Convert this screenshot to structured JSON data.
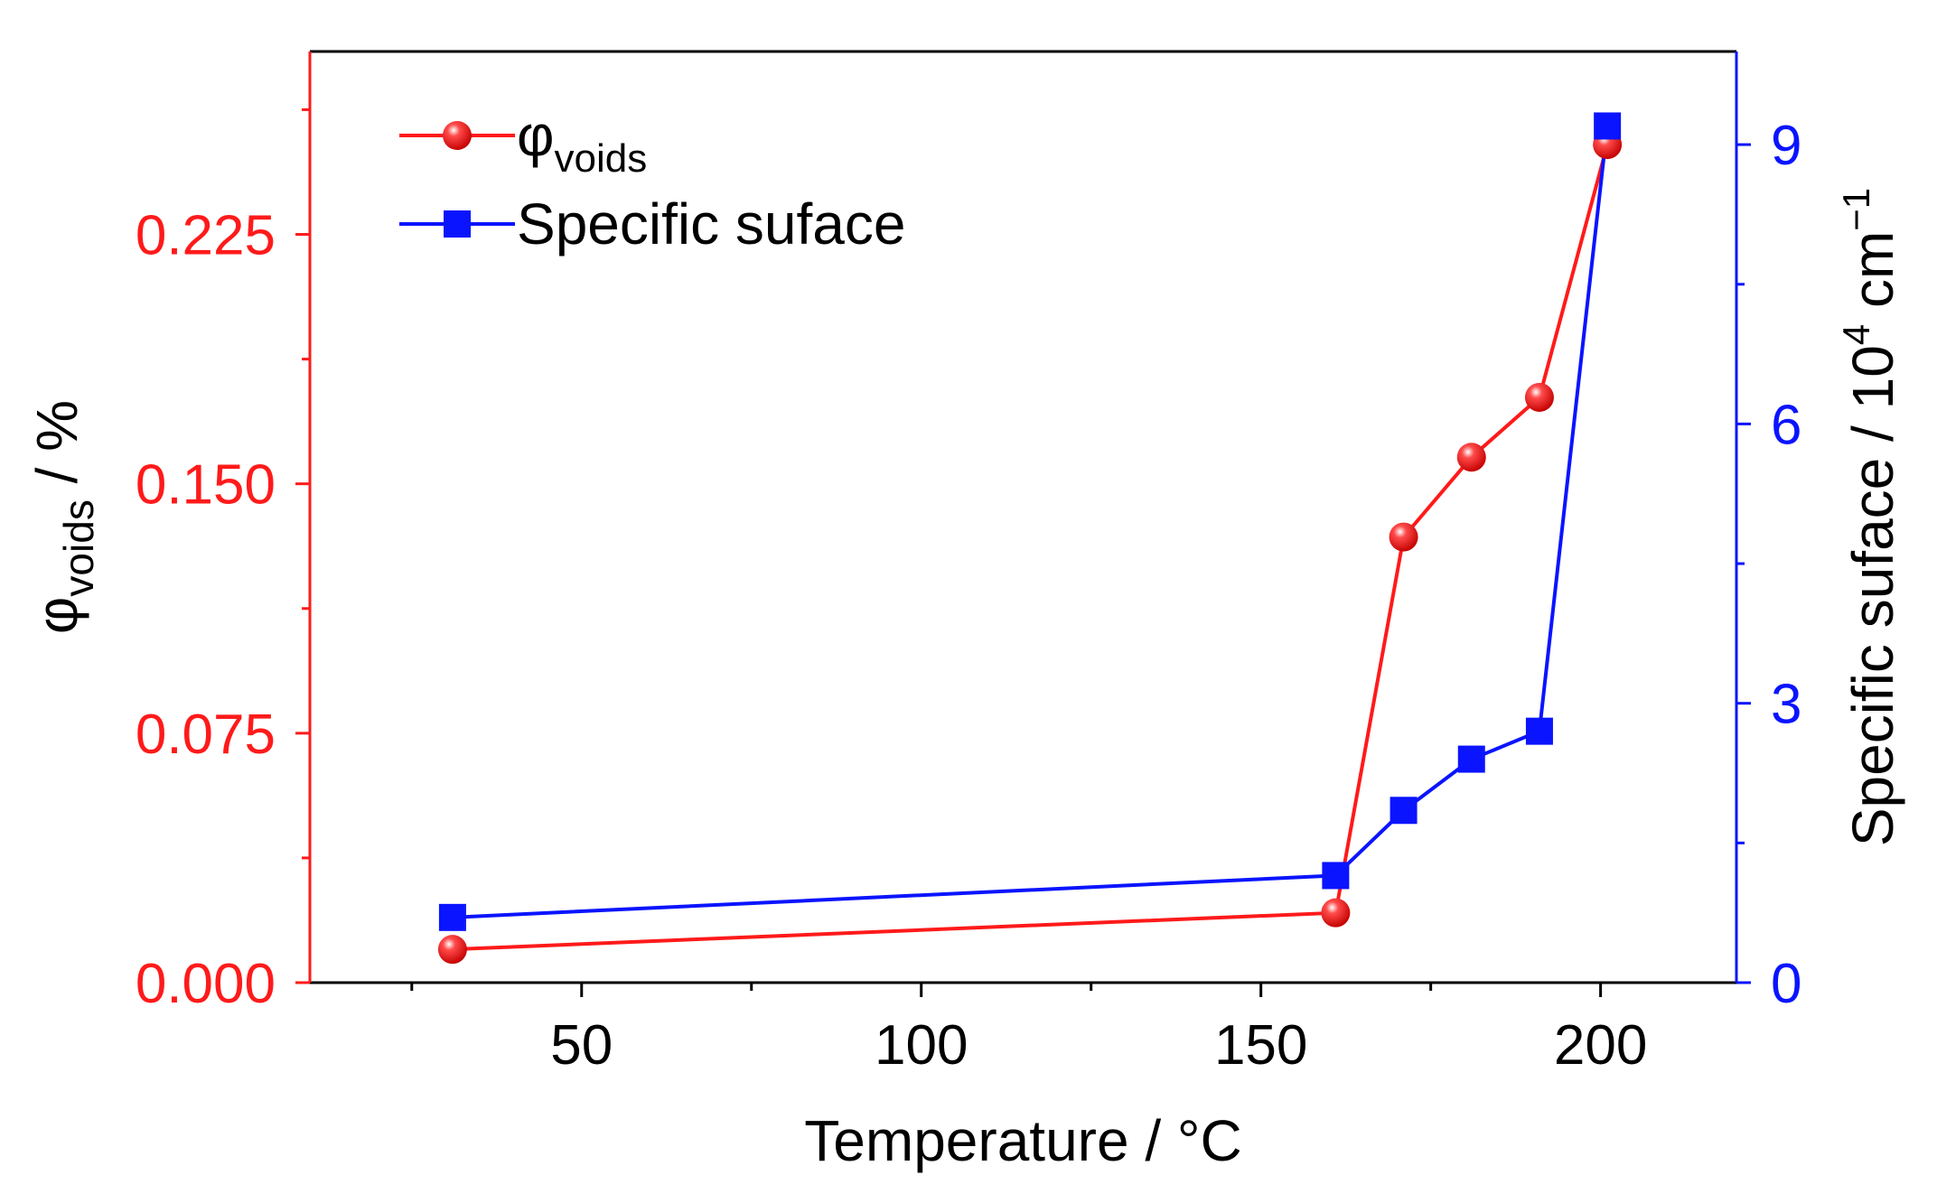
{
  "chart_data": {
    "type": "line",
    "x": [
      31,
      161,
      171,
      181,
      191,
      201
    ],
    "series": [
      {
        "name": "φvoids",
        "legend_symbol": "φ",
        "legend_subscript": "voids",
        "axis": "left",
        "marker": "circle",
        "color": "#ff1a1a",
        "values": [
          0.01,
          0.021,
          0.134,
          0.158,
          0.176,
          0.252
        ]
      },
      {
        "name": "Specific suface",
        "axis": "right",
        "marker": "square",
        "color": "#0a14ff",
        "values": [
          0.7,
          1.15,
          1.85,
          2.4,
          2.7,
          9.2
        ]
      }
    ],
    "xlabel": "Temperature / °C",
    "ylabel_left": "φvoids / %",
    "ylabel_left_symbol": "φ",
    "ylabel_left_subscript": "voids",
    "ylabel_left_unit": " / %",
    "ylabel_right": "Specific suface / 10⁴ cm⁻¹",
    "ylabel_right_prefix": "Specific suface / 10",
    "ylabel_right_exp": "4",
    "ylabel_right_unit": " cm",
    "ylabel_right_unit_exp": "−1",
    "xlim": [
      10,
      220
    ],
    "ylim_left": [
      0,
      0.28
    ],
    "ylim_right": [
      0,
      10
    ],
    "x_ticks": [
      50,
      100,
      150,
      200
    ],
    "x_tick_labels": [
      "50",
      "100",
      "150",
      "200"
    ],
    "y_left_ticks": [
      0,
      0.075,
      0.15,
      0.225
    ],
    "y_left_tick_labels": [
      "0.000",
      "0.075",
      "0.150",
      "0.225"
    ],
    "y_right_ticks": [
      0,
      3,
      6,
      9
    ],
    "y_right_tick_labels": [
      "0",
      "3",
      "6",
      "9"
    ],
    "legend_position": "top-left",
    "left_axis_color": "#ff1a1a",
    "right_axis_color": "#0a14ff",
    "frame_color": "#000000"
  }
}
